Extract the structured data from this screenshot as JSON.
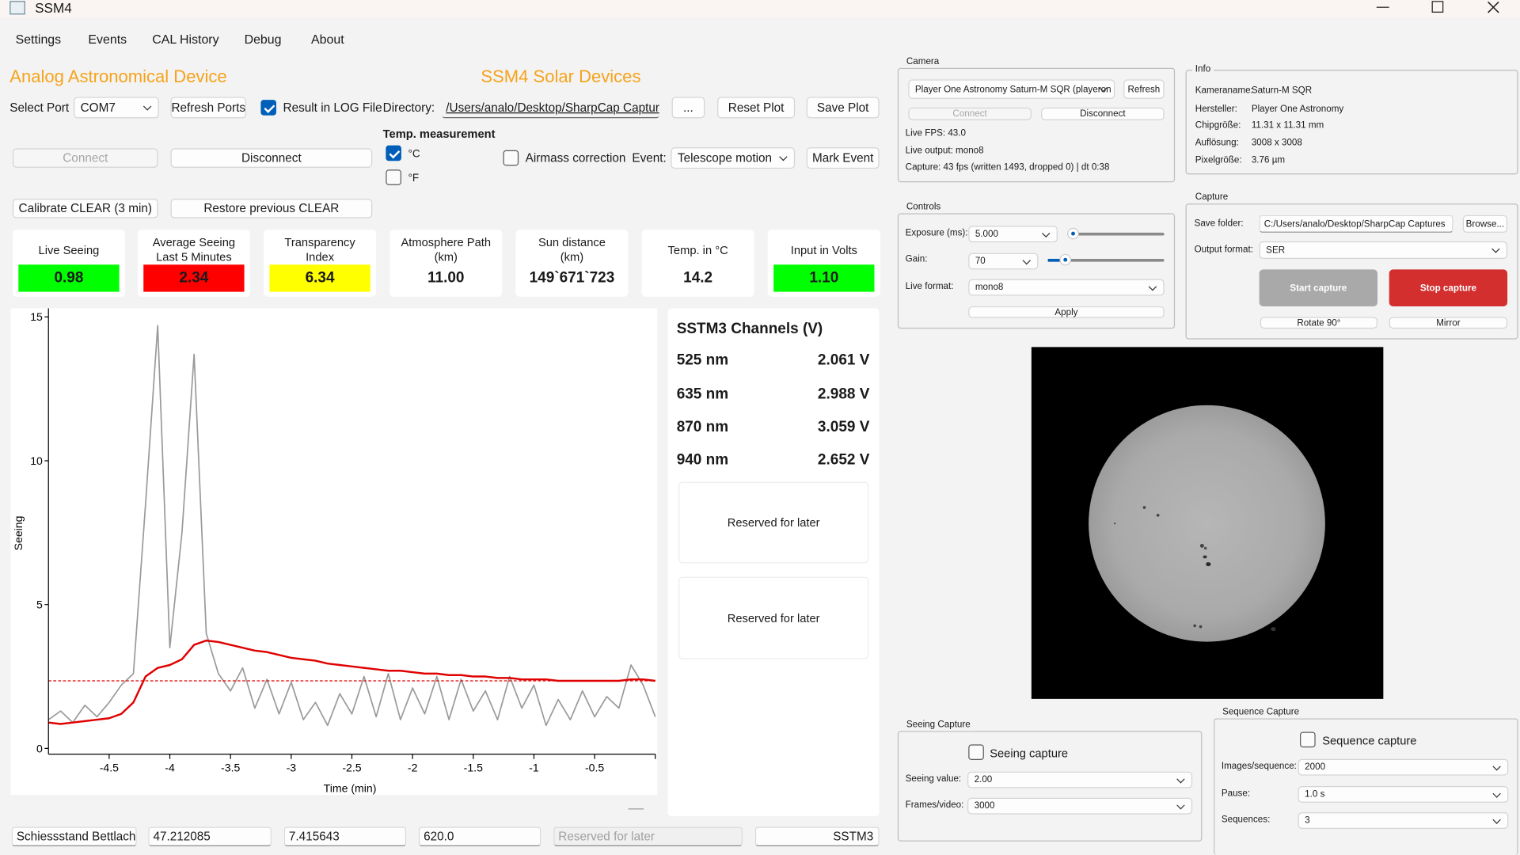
{
  "window": {
    "title": "SSM4"
  },
  "menu": [
    "Settings",
    "Events",
    "CAL History",
    "Debug",
    "About"
  ],
  "header": {
    "left": "Analog Astronomical Device",
    "right": "SSM4 Solar Devices"
  },
  "controls": {
    "select_port_label": "Select Port",
    "port": "COM7",
    "refresh_ports": "Refresh Ports",
    "result_log": "Result in LOG File",
    "directory_label": "Directory:",
    "directory": "/Users/analo/Desktop/SharpCap Captures",
    "browse": "...",
    "reset_plot": "Reset Plot",
    "save_plot": "Save Plot",
    "temp_title": "Temp. measurement",
    "celsius": "°C",
    "fahrenheit": "°F",
    "connect": "Connect",
    "disconnect": "Disconnect",
    "airmass": "Airmass correction",
    "event_label": "Event:",
    "event": "Telescope motion",
    "mark_event": "Mark Event",
    "calibrate": "Calibrate CLEAR (3 min)",
    "restore": "Restore previous CLEAR"
  },
  "metrics": [
    {
      "label": "Live Seeing",
      "value": "0.98",
      "color": "#00ff00"
    },
    {
      "label": "Average Seeing\nLast 5 Minutes",
      "value": "2.34",
      "color": "#ff0000"
    },
    {
      "label": "Transparency\nIndex",
      "value": "6.34",
      "color": "#ffff00"
    },
    {
      "label": "Atmosphere Path\n(km)",
      "value": "11.00",
      "color": "#ffffff"
    },
    {
      "label": "Sun distance\n(km)",
      "value": "149`671`723",
      "color": "#ffffff"
    },
    {
      "label": "Temp. in °C",
      "value": "14.2",
      "color": "#ffffff"
    },
    {
      "label": "Input in Volts",
      "value": "1.10",
      "color": "#00ff00"
    }
  ],
  "chart_data": {
    "type": "line",
    "x_label": "Time (min)",
    "y_label": "Seeing",
    "x": [
      -5.0,
      -4.9,
      -4.8,
      -4.7,
      -4.6,
      -4.5,
      -4.4,
      -4.3,
      -4.2,
      -4.1,
      -4.0,
      -3.9,
      -3.8,
      -3.7,
      -3.6,
      -3.5,
      -3.4,
      -3.3,
      -3.2,
      -3.1,
      -3.0,
      -2.9,
      -2.8,
      -2.7,
      -2.6,
      -2.5,
      -2.4,
      -2.3,
      -2.2,
      -2.1,
      -2.0,
      -1.9,
      -1.8,
      -1.7,
      -1.6,
      -1.5,
      -1.4,
      -1.3,
      -1.2,
      -1.1,
      -1.0,
      -0.9,
      -0.8,
      -0.7,
      -0.6,
      -0.5,
      -0.4,
      -0.3,
      -0.2,
      -0.1,
      0.0
    ],
    "series": [
      {
        "color": "#9a9a9a",
        "values": [
          1.0,
          1.3,
          0.9,
          1.5,
          1.1,
          1.6,
          2.2,
          2.6,
          8.5,
          14.7,
          3.5,
          7.5,
          13.7,
          4.0,
          2.6,
          2.0,
          2.8,
          1.4,
          2.4,
          1.2,
          2.3,
          1.0,
          1.6,
          0.8,
          1.9,
          1.2,
          2.5,
          1.1,
          2.6,
          1.0,
          2.1,
          1.2,
          2.5,
          1.0,
          2.4,
          1.3,
          2.0,
          1.0,
          2.5,
          1.4,
          2.2,
          0.8,
          1.7,
          1.0,
          2.0,
          1.1,
          1.8,
          1.4,
          2.9,
          2.2,
          1.1
        ]
      },
      {
        "color": "#e00000",
        "values": [
          0.9,
          0.85,
          0.9,
          0.95,
          1.0,
          1.05,
          1.2,
          1.6,
          2.5,
          2.8,
          2.9,
          3.1,
          3.6,
          3.75,
          3.7,
          3.6,
          3.5,
          3.4,
          3.35,
          3.25,
          3.15,
          3.1,
          3.05,
          2.95,
          2.9,
          2.85,
          2.8,
          2.75,
          2.7,
          2.7,
          2.65,
          2.6,
          2.6,
          2.55,
          2.55,
          2.5,
          2.5,
          2.45,
          2.45,
          2.4,
          2.4,
          2.4,
          2.35,
          2.35,
          2.35,
          2.35,
          2.35,
          2.35,
          2.4,
          2.4,
          2.35
        ]
      }
    ],
    "threshold": 2.35,
    "threshold_color": "#e00000",
    "xlim": [
      -5,
      0
    ],
    "ylim": [
      -0.2,
      15.3
    ],
    "xticks": [
      -4.5,
      -4,
      -3.5,
      -3,
      -2.5,
      -2,
      -1.5,
      -1,
      -0.5
    ],
    "yticks": [
      0,
      5,
      10,
      15
    ]
  },
  "channels": {
    "title": "SSTM3 Channels (V)",
    "rows": [
      {
        "band": "525 nm",
        "value": "2.061 V"
      },
      {
        "band": "635 nm",
        "value": "2.988 V"
      },
      {
        "band": "870 nm",
        "value": "3.059 V"
      },
      {
        "band": "940 nm",
        "value": "2.652 V"
      }
    ],
    "reserved": [
      "Reserved for later",
      "Reserved for later"
    ]
  },
  "footer": [
    "Schiessstand Bettlach",
    "47.212085",
    "7.415643",
    "620.0",
    "Reserved for later",
    "SSTM3"
  ],
  "camera": {
    "title": "Camera",
    "device": "Player One Astronomy Saturn-M SQR (playeron",
    "refresh": "Refresh",
    "connect": "Connect",
    "disconnect": "Disconnect",
    "fps": "Live FPS: 43.0",
    "output": "Live output: mono8",
    "capture": "Capture: 43 fps (written 1493, dropped 0)  |  dt 0:38"
  },
  "info": {
    "title": "Info",
    "rows": [
      [
        "Kameraname:",
        "Saturn-M SQR"
      ],
      [
        "Hersteller:",
        "Player One Astronomy"
      ],
      [
        "Chipgröße:",
        "11.31 x 11.31 mm"
      ],
      [
        "Auflösung:",
        "3008 x 3008"
      ],
      [
        "Pixelgröße:",
        "3.76 µm"
      ]
    ]
  },
  "camera_controls": {
    "title": "Controls",
    "exposure_label": "Exposure (ms):",
    "exposure": "5.000",
    "gain_label": "Gain:",
    "gain": "70",
    "live_format_label": "Live format:",
    "live_format": "mono8",
    "apply": "Apply"
  },
  "capture": {
    "title": "Capture",
    "save_folder_label": "Save folder:",
    "save_folder": "C:/Users/analo/Desktop/SharpCap Captures",
    "browse": "Browse...",
    "output_format_label": "Output format:",
    "output_format": "SER",
    "start": "Start capture",
    "stop": "Stop capture",
    "rotate": "Rotate 90°",
    "mirror": "Mirror"
  },
  "seeing_capture": {
    "title": "Seeing Capture",
    "checkbox": "Seeing capture",
    "seeing_value_label": "Seeing value:",
    "seeing_value": "2.00",
    "frames_label": "Frames/video:",
    "frames": "3000"
  },
  "sequence_capture": {
    "title": "Sequence Capture",
    "checkbox": "Sequence capture",
    "images_label": "Images/sequence:",
    "images": "2000",
    "pause_label": "Pause:",
    "pause": "1.0 s",
    "sequences_label": "Sequences:",
    "sequences": "3"
  }
}
